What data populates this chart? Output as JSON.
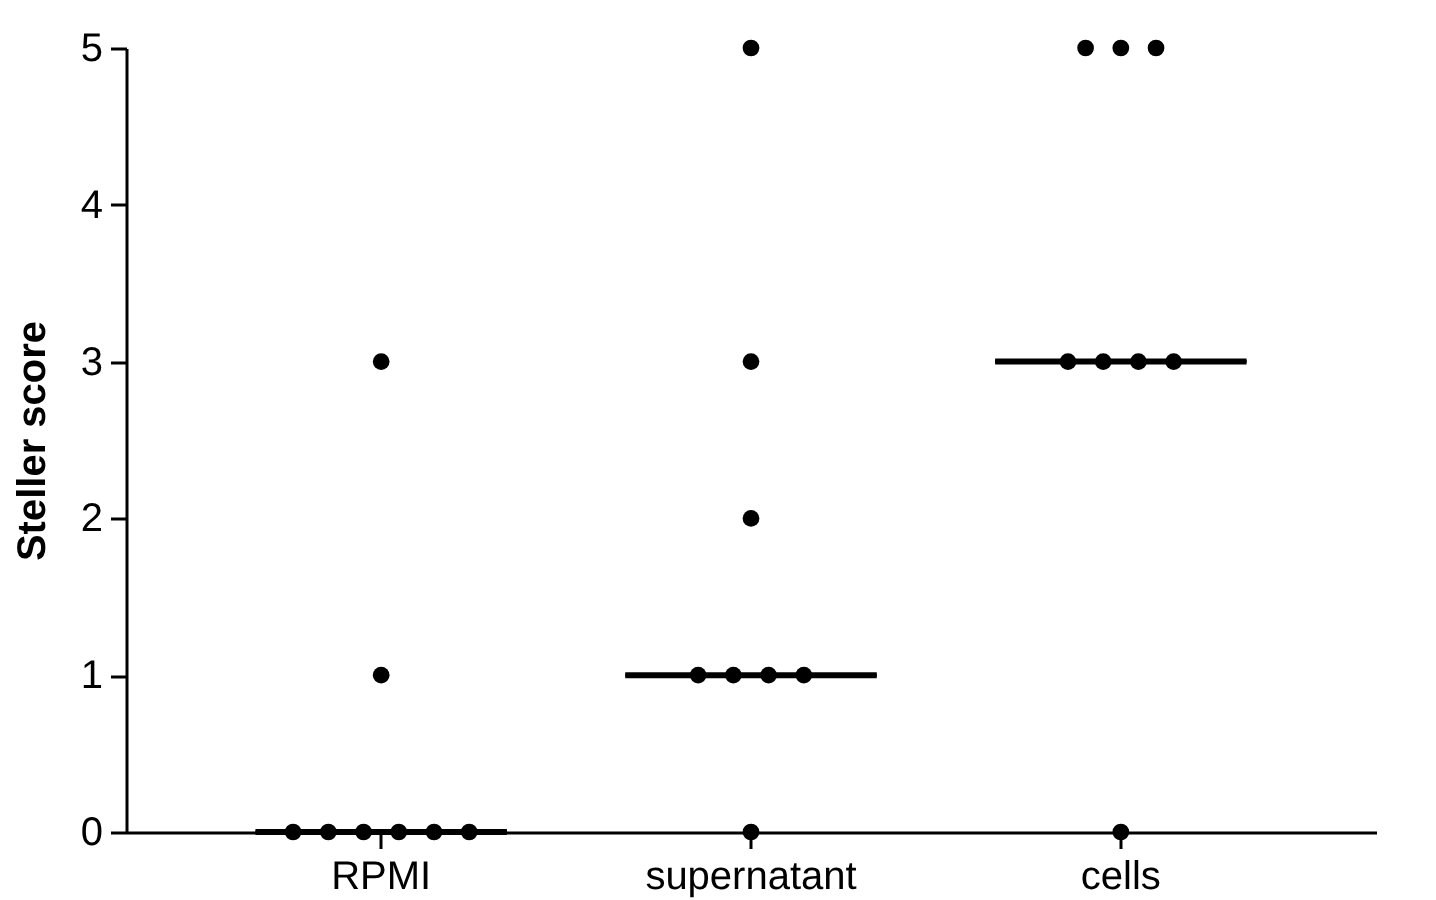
{
  "chart_data": {
    "type": "scatter",
    "categories": [
      "RPMI",
      "supernatant",
      "cells"
    ],
    "ylabel": "Steller score",
    "ylim": [
      0,
      5
    ],
    "yticks": [
      0,
      1,
      2,
      3,
      4,
      5
    ],
    "marker": "circle",
    "series": [
      {
        "color": "#000000",
        "x": [
          "RPMI",
          "RPMI",
          "RPMI",
          "RPMI",
          "RPMI",
          "RPMI",
          "RPMI",
          "RPMI",
          "supernatant",
          "supernatant",
          "supernatant",
          "supernatant",
          "supernatant",
          "supernatant",
          "supernatant",
          "supernatant",
          "cells",
          "cells",
          "cells",
          "cells",
          "cells",
          "cells",
          "cells",
          "cells"
        ],
        "values": [
          0,
          0,
          0,
          0,
          0,
          0,
          1,
          3,
          0,
          1,
          1,
          1,
          1,
          2,
          3,
          5,
          0,
          3,
          3,
          3,
          3,
          5,
          5,
          5
        ]
      },
      {
        "type": "box",
        "color": "#000000",
        "boxes": [
          {
            "low": 0,
            "q1": 0,
            "median": 0,
            "q3": 0,
            "high": 0
          },
          {
            "low": 1,
            "q1": 1,
            "median": 1,
            "q3": 1,
            "high": 1
          },
          {
            "low": 3,
            "q1": 3,
            "median": 3,
            "q3": 3,
            "high": 3
          }
        ]
      }
    ]
  }
}
